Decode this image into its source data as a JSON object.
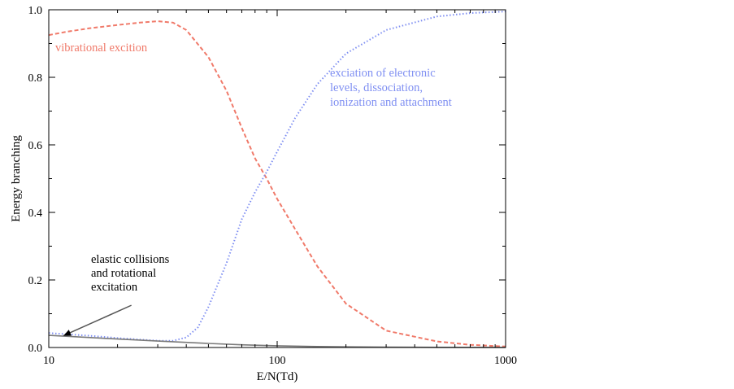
{
  "chart_data": {
    "type": "line",
    "title": "",
    "xlabel": "E/N(Td)",
    "ylabel": "Energy branching",
    "xscale": "log",
    "xlim": [
      10,
      1000
    ],
    "ylim": [
      0,
      1.0
    ],
    "x_ticks": [
      "10",
      "100",
      "1000"
    ],
    "y_ticks": [
      "0.0",
      "0.2",
      "0.4",
      "0.6",
      "0.8",
      "1.0"
    ],
    "grid": false,
    "legend": "none",
    "colors": {
      "vibrational": "#f07a6a",
      "electronic": "#7f8ff2",
      "elastic": "#7a7a7a",
      "axis": "#000000"
    },
    "series": [
      {
        "key": "vibrational",
        "style": "dashed",
        "x": [
          10,
          12,
          15,
          20,
          25,
          30,
          35,
          40,
          50,
          60,
          70,
          80,
          90,
          100,
          120,
          150,
          200,
          300,
          500,
          700,
          1000
        ],
        "y": [
          0.925,
          0.935,
          0.945,
          0.955,
          0.962,
          0.966,
          0.962,
          0.94,
          0.86,
          0.76,
          0.65,
          0.56,
          0.5,
          0.44,
          0.35,
          0.24,
          0.13,
          0.05,
          0.018,
          0.008,
          0.003
        ]
      },
      {
        "key": "electronic",
        "style": "dotted",
        "x": [
          10,
          15,
          20,
          30,
          35,
          40,
          45,
          50,
          60,
          70,
          80,
          90,
          100,
          120,
          150,
          200,
          300,
          500,
          700,
          1000
        ],
        "y": [
          0.043,
          0.035,
          0.028,
          0.02,
          0.02,
          0.03,
          0.06,
          0.12,
          0.25,
          0.38,
          0.46,
          0.52,
          0.58,
          0.68,
          0.78,
          0.87,
          0.94,
          0.98,
          0.99,
          0.995
        ]
      },
      {
        "key": "elastic",
        "style": "solid",
        "x": [
          10,
          20,
          30,
          50,
          70,
          100,
          150,
          200,
          300,
          500,
          1000
        ],
        "y": [
          0.036,
          0.025,
          0.019,
          0.012,
          0.008,
          0.005,
          0.003,
          0.002,
          0.001,
          0.0005,
          0.0002
        ]
      }
    ],
    "annotations": [
      {
        "key": "vibrational",
        "lines": [
          "vibrational excition"
        ]
      },
      {
        "key": "electronic",
        "lines": [
          "exciation of electronic",
          "levels, dissociation,",
          "ionization and attachment"
        ]
      },
      {
        "key": "elastic",
        "lines": [
          "elastic collisions",
          "and rotational",
          "excitation"
        ],
        "arrow_tail": [
          23,
          0.125
        ],
        "arrow_head": [
          11.6,
          0.035
        ]
      }
    ]
  }
}
